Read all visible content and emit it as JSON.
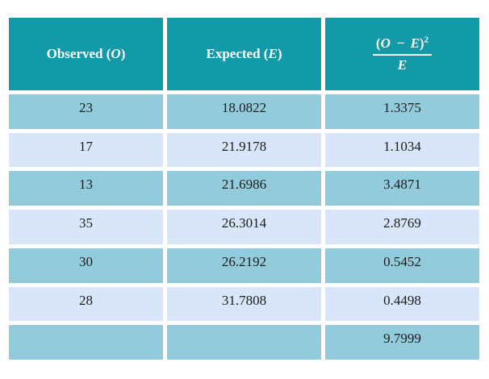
{
  "header": {
    "observed": {
      "prefix": "Observed (",
      "symbol": "O",
      "suffix": ")"
    },
    "expected": {
      "prefix": "Expected (",
      "symbol": "E",
      "suffix": ")"
    },
    "formula": {
      "open": "(",
      "var1": "O",
      "minus": "−",
      "var2": "E",
      "close": ")",
      "exponent": "2",
      "denominator": "E"
    }
  },
  "table": {
    "rows": [
      [
        "23",
        "18.0822",
        "1.3375"
      ],
      [
        "17",
        "21.9178",
        "1.1034"
      ],
      [
        "13",
        "21.6986",
        "3.4871"
      ],
      [
        "35",
        "26.3014",
        "2.8769"
      ],
      [
        "30",
        "26.2192",
        "0.5452"
      ],
      [
        "28",
        "31.7808",
        "0.4498"
      ],
      [
        "",
        "",
        "9.7999"
      ]
    ]
  },
  "colors": {
    "header_background": "#129AA9",
    "row_medium": "#92CBDB",
    "row_light": "#D9E5F8",
    "header_text": "#FFFFFF",
    "body_text": "#1C1C1C",
    "page_background": "#FFFFFF"
  },
  "chart_data": {
    "type": "table",
    "title": "Chi-square calculation table",
    "columns": [
      "Observed (O)",
      "Expected (E)",
      "(O − E)² / E"
    ],
    "rows": [
      [
        23,
        18.0822,
        1.3375
      ],
      [
        17,
        21.9178,
        1.1034
      ],
      [
        13,
        21.6986,
        3.4871
      ],
      [
        35,
        26.3014,
        2.8769
      ],
      [
        30,
        26.2192,
        0.5452
      ],
      [
        28,
        31.7808,
        0.4498
      ],
      [
        null,
        null,
        9.7999
      ]
    ],
    "chi_square_total": 9.7999,
    "layout": {
      "header_style": "teal banded header",
      "row_banding": [
        "medium-blue",
        "light-blue"
      ],
      "last_row": "total of third column only"
    }
  }
}
